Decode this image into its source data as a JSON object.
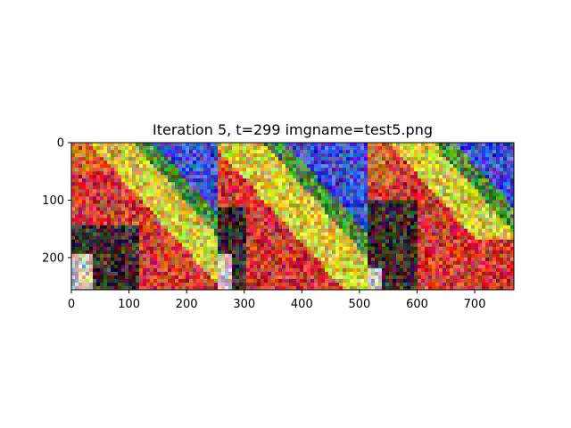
{
  "chart_data": {
    "type": "heatmap",
    "title": "Iteration 5, t=299 imgname=test5.png",
    "xlabel": "",
    "ylabel": "",
    "xlim": [
      0,
      768
    ],
    "ylim": [
      256,
      0
    ],
    "x_ticks": [
      0,
      100,
      200,
      300,
      400,
      500,
      600,
      700
    ],
    "y_ticks": [
      0,
      100,
      200
    ],
    "grid": false,
    "image": {
      "width": 768,
      "height": 256,
      "panels": 3,
      "description_colors": {
        "red": "#d23c32",
        "orange": "#d2642d",
        "yellow": "#d2c83c",
        "green": "#4b8c37",
        "blue": "#3c50d2",
        "dark": "#3c2d28",
        "light": "#c8c3be"
      }
    }
  }
}
